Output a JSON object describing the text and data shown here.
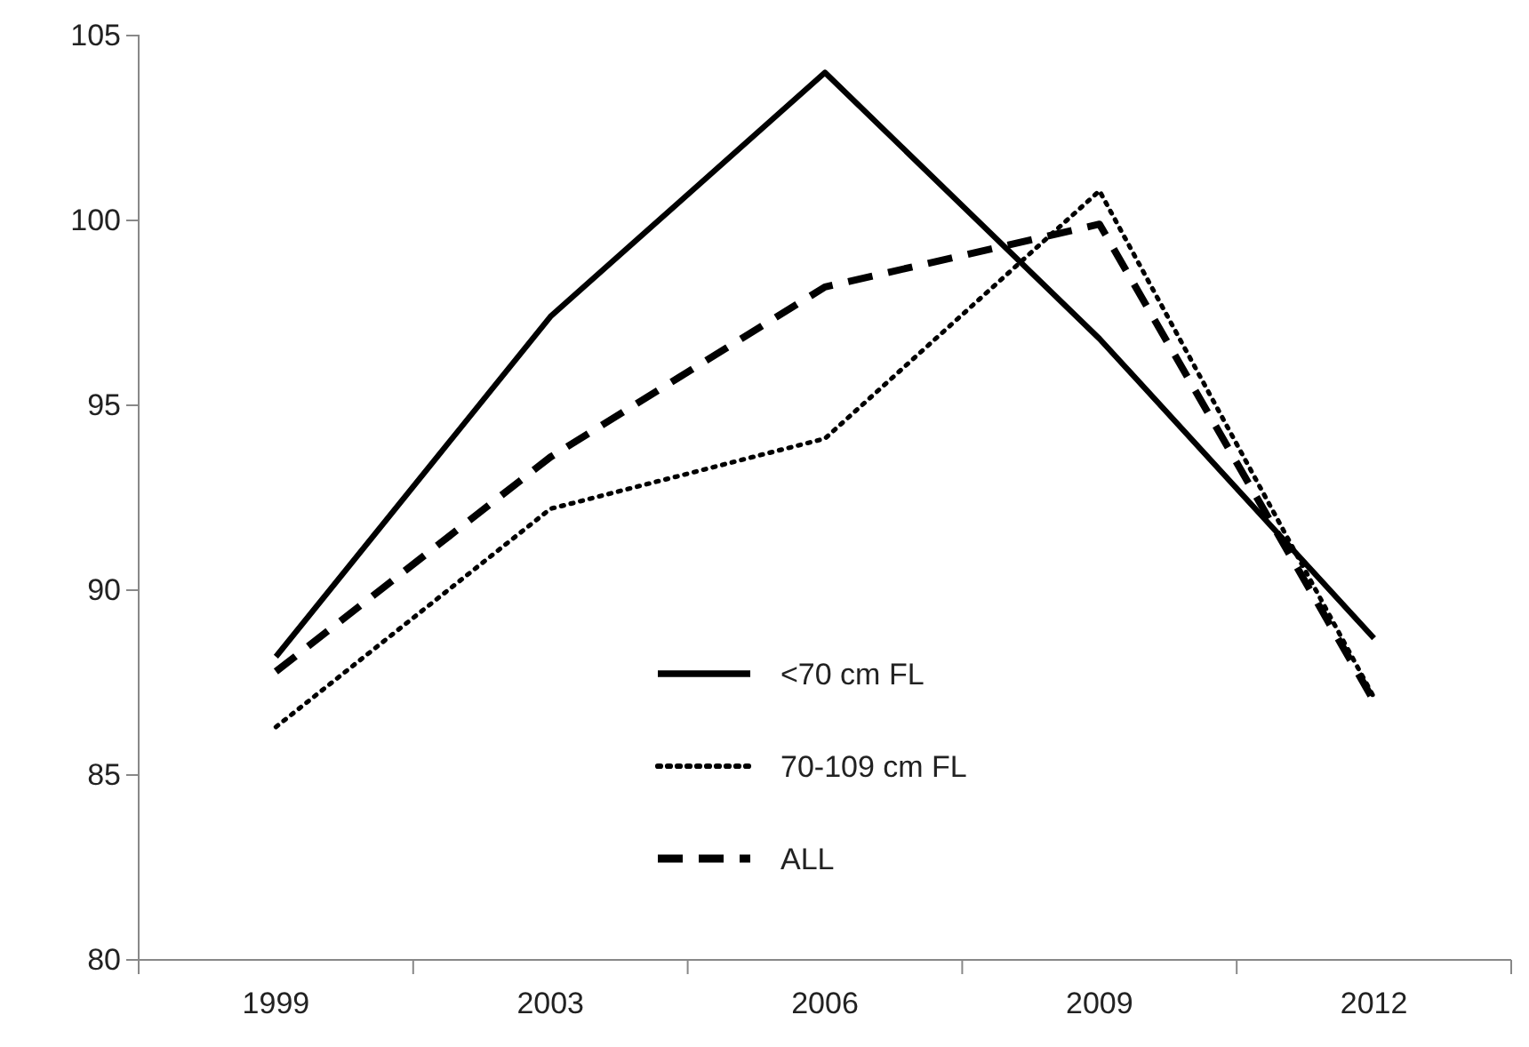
{
  "chart_data": {
    "type": "line",
    "categories": [
      "1999",
      "2003",
      "2006",
      "2009",
      "2012"
    ],
    "ylim": [
      80,
      105
    ],
    "yticks": [
      80,
      85,
      90,
      95,
      100,
      105
    ],
    "grid": false,
    "legend": "bottom",
    "marker": "none",
    "series": [
      {
        "name": "<70 cm FL",
        "color": "#000000",
        "line_style": "solid",
        "values": [
          88.2,
          97.4,
          104.0,
          96.8,
          88.7
        ]
      },
      {
        "name": "70-109 cm FL",
        "color": "#000000",
        "line_style": "dotted",
        "values": [
          86.3,
          92.2,
          94.1,
          100.8,
          87.1
        ]
      },
      {
        "name": "ALL",
        "color": "#000000",
        "line_style": "dashed",
        "values": [
          87.8,
          93.6,
          98.2,
          99.9,
          87.0
        ]
      }
    ]
  }
}
